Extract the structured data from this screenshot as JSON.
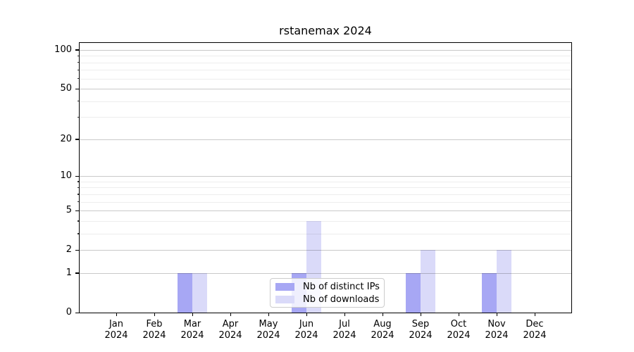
{
  "figure": {
    "title": "rstanemax 2024"
  },
  "chart_data": {
    "type": "bar",
    "title": "rstanemax 2024",
    "categories": [
      "Jan",
      "Feb",
      "Mar",
      "Apr",
      "May",
      "Jun",
      "Jul",
      "Aug",
      "Sep",
      "Oct",
      "Nov",
      "Dec"
    ],
    "year": "2024",
    "series": [
      {
        "name": "Nb of distinct IPs",
        "color": "#a7a7f4",
        "values": [
          0,
          0,
          1,
          0,
          0,
          1,
          0,
          0,
          1,
          0,
          1,
          0
        ]
      },
      {
        "name": "Nb of downloads",
        "color": "#dadaf9",
        "values": [
          0,
          0,
          1,
          0,
          0,
          4,
          0,
          0,
          2,
          0,
          2,
          0
        ]
      }
    ],
    "xlabel": "",
    "ylabel": "",
    "yscale": "log1p",
    "ylim": [
      0,
      113
    ],
    "yticks": [
      0,
      1,
      2,
      5,
      10,
      20,
      50,
      100
    ],
    "ytick_labels": [
      "0",
      "1",
      "2",
      "5",
      "10",
      "20",
      "50",
      "100"
    ],
    "minor_yticks": [
      3,
      4,
      6,
      7,
      8,
      9,
      30,
      40,
      60,
      70,
      80,
      90
    ],
    "grid": {
      "major": true,
      "minor": true,
      "axisbelow": false
    },
    "legend": {
      "position": "lower center",
      "entries": [
        "Nb of distinct IPs",
        "Nb of downloads"
      ]
    }
  }
}
